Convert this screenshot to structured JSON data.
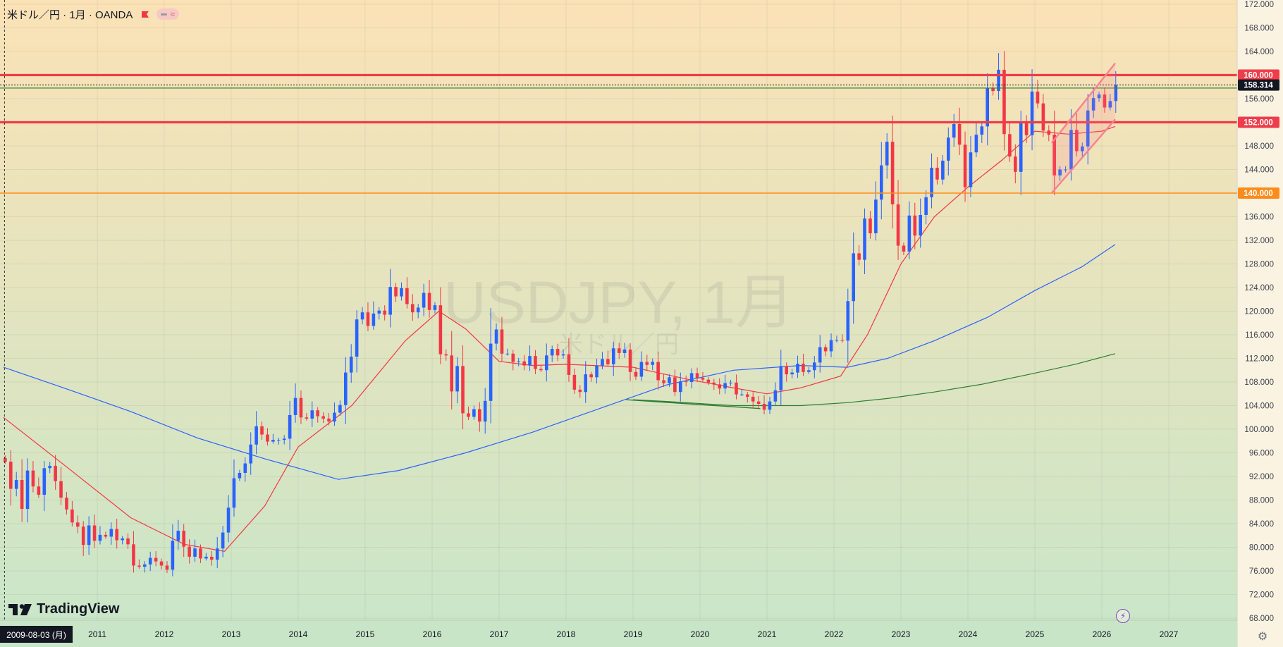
{
  "legend": {
    "symbol_title": "米ドル／円 · 1月 · OANDA",
    "pill_symbol": "≈"
  },
  "watermark": {
    "main": "USDJPY, 1月",
    "sub": "米ドル／円"
  },
  "branding": {
    "logo_text": "TradingView"
  },
  "crosshair": {
    "date_label": "2009-08-03 (月)"
  },
  "colors": {
    "bull": "#2962ff",
    "bear": "#f23645",
    "ma_short": "#f23645",
    "ma_mid": "#2962ff",
    "ma_long": "#2e7d32",
    "bg_top": "#fbe2b6",
    "bg_bottom": "#c8e6c9",
    "hline_red": "#ef3d4a",
    "hline_orange": "#ff8c1a",
    "channel": "#f7828f"
  },
  "chart_data": {
    "type": "candlestick",
    "symbol": "USDJPY",
    "interval": "1M",
    "ylim": [
      68,
      172
    ],
    "y_ticks": [
      "172.000",
      "168.000",
      "164.000",
      "160.000",
      "156.000",
      "152.000",
      "148.000",
      "144.000",
      "140.000",
      "136.000",
      "132.000",
      "128.000",
      "124.000",
      "120.000",
      "116.000",
      "112.000",
      "108.000",
      "104.000",
      "100.000",
      "96.000",
      "92.000",
      "88.000",
      "84.000",
      "80.000",
      "76.000",
      "72.000",
      "68.000"
    ],
    "x_ticks": [
      "2011",
      "2012",
      "2013",
      "2014",
      "2015",
      "2016",
      "2017",
      "2018",
      "2019",
      "2020",
      "2021",
      "2022",
      "2023",
      "2024",
      "2025",
      "2026",
      "2027"
    ],
    "x_range": [
      "2009-08",
      "2027-11"
    ],
    "last_price": 158.314,
    "price_labels": [
      {
        "value": 160.0,
        "label": "160.000",
        "kind": "red"
      },
      {
        "value": 158.314,
        "label": "158.314",
        "kind": "current"
      },
      {
        "value": 152.0,
        "label": "152.000",
        "kind": "red"
      },
      {
        "value": 140.0,
        "label": "140.000",
        "kind": "orange"
      }
    ],
    "horizontal_lines": [
      {
        "value": 160.0,
        "color": "red"
      },
      {
        "value": 152.0,
        "color": "red"
      },
      {
        "value": 140.0,
        "color": "orange"
      },
      {
        "value": 157.8,
        "color": "green"
      }
    ],
    "closes": [
      [
        "2009-08",
        94.5
      ],
      [
        "2009-09",
        89.9
      ],
      [
        "2009-10",
        91.4
      ],
      [
        "2009-11",
        86.5
      ],
      [
        "2009-12",
        93.0
      ],
      [
        "2010-01",
        90.3
      ],
      [
        "2010-02",
        88.9
      ],
      [
        "2010-03",
        93.4
      ],
      [
        "2010-04",
        93.8
      ],
      [
        "2010-05",
        91.2
      ],
      [
        "2010-06",
        88.4
      ],
      [
        "2010-07",
        86.4
      ],
      [
        "2010-08",
        84.2
      ],
      [
        "2010-09",
        83.5
      ],
      [
        "2010-10",
        80.4
      ],
      [
        "2010-11",
        83.7
      ],
      [
        "2010-12",
        81.1
      ],
      [
        "2011-01",
        82.1
      ],
      [
        "2011-02",
        81.8
      ],
      [
        "2011-03",
        83.1
      ],
      [
        "2011-04",
        81.2
      ],
      [
        "2011-05",
        81.5
      ],
      [
        "2011-06",
        80.5
      ],
      [
        "2011-07",
        76.9
      ],
      [
        "2011-08",
        76.7
      ],
      [
        "2011-09",
        77.1
      ],
      [
        "2011-10",
        78.2
      ],
      [
        "2011-11",
        77.6
      ],
      [
        "2011-12",
        76.9
      ],
      [
        "2012-01",
        76.2
      ],
      [
        "2012-02",
        81.1
      ],
      [
        "2012-03",
        82.8
      ],
      [
        "2012-04",
        80.1
      ],
      [
        "2012-05",
        78.4
      ],
      [
        "2012-06",
        79.8
      ],
      [
        "2012-07",
        78.1
      ],
      [
        "2012-08",
        78.4
      ],
      [
        "2012-09",
        77.9
      ],
      [
        "2012-10",
        79.8
      ],
      [
        "2012-11",
        82.5
      ],
      [
        "2012-12",
        86.7
      ],
      [
        "2013-01",
        91.7
      ],
      [
        "2013-02",
        92.6
      ],
      [
        "2013-03",
        94.2
      ],
      [
        "2013-04",
        97.4
      ],
      [
        "2013-05",
        100.5
      ],
      [
        "2013-06",
        99.1
      ],
      [
        "2013-07",
        97.9
      ],
      [
        "2013-08",
        98.2
      ],
      [
        "2013-09",
        98.2
      ],
      [
        "2013-10",
        98.4
      ],
      [
        "2013-11",
        102.4
      ],
      [
        "2013-12",
        105.3
      ],
      [
        "2014-01",
        102.0
      ],
      [
        "2014-02",
        101.8
      ],
      [
        "2014-03",
        103.2
      ],
      [
        "2014-04",
        102.2
      ],
      [
        "2014-05",
        101.8
      ],
      [
        "2014-06",
        101.3
      ],
      [
        "2014-07",
        102.8
      ],
      [
        "2014-08",
        104.1
      ],
      [
        "2014-09",
        109.6
      ],
      [
        "2014-10",
        112.3
      ],
      [
        "2014-11",
        118.6
      ],
      [
        "2014-12",
        119.8
      ],
      [
        "2015-01",
        117.5
      ],
      [
        "2015-02",
        119.6
      ],
      [
        "2015-03",
        120.1
      ],
      [
        "2015-04",
        119.4
      ],
      [
        "2015-05",
        124.1
      ],
      [
        "2015-06",
        122.5
      ],
      [
        "2015-07",
        123.9
      ],
      [
        "2015-08",
        121.2
      ],
      [
        "2015-09",
        119.8
      ],
      [
        "2015-10",
        120.6
      ],
      [
        "2015-11",
        123.1
      ],
      [
        "2015-12",
        120.2
      ],
      [
        "2016-01",
        121.0
      ],
      [
        "2016-02",
        112.7
      ],
      [
        "2016-03",
        112.5
      ],
      [
        "2016-04",
        106.4
      ],
      [
        "2016-05",
        110.7
      ],
      [
        "2016-06",
        102.7
      ],
      [
        "2016-07",
        102.1
      ],
      [
        "2016-08",
        103.4
      ],
      [
        "2016-09",
        101.3
      ],
      [
        "2016-10",
        104.8
      ],
      [
        "2016-11",
        114.5
      ],
      [
        "2016-12",
        116.9
      ],
      [
        "2017-01",
        112.8
      ],
      [
        "2017-02",
        112.8
      ],
      [
        "2017-03",
        111.4
      ],
      [
        "2017-04",
        111.5
      ],
      [
        "2017-05",
        110.8
      ],
      [
        "2017-06",
        112.4
      ],
      [
        "2017-07",
        110.2
      ],
      [
        "2017-08",
        110.0
      ],
      [
        "2017-09",
        112.5
      ],
      [
        "2017-10",
        113.6
      ],
      [
        "2017-11",
        112.5
      ],
      [
        "2017-12",
        112.7
      ],
      [
        "2018-01",
        109.2
      ],
      [
        "2018-02",
        106.7
      ],
      [
        "2018-03",
        106.3
      ],
      [
        "2018-04",
        109.3
      ],
      [
        "2018-05",
        108.8
      ],
      [
        "2018-06",
        110.8
      ],
      [
        "2018-07",
        111.9
      ],
      [
        "2018-08",
        111.0
      ],
      [
        "2018-09",
        113.7
      ],
      [
        "2018-10",
        112.9
      ],
      [
        "2018-11",
        113.5
      ],
      [
        "2018-12",
        109.7
      ],
      [
        "2019-01",
        108.9
      ],
      [
        "2019-02",
        111.4
      ],
      [
        "2019-03",
        110.9
      ],
      [
        "2019-04",
        111.4
      ],
      [
        "2019-05",
        108.3
      ],
      [
        "2019-06",
        107.8
      ],
      [
        "2019-07",
        108.8
      ],
      [
        "2019-08",
        106.3
      ],
      [
        "2019-09",
        108.1
      ],
      [
        "2019-10",
        108.0
      ],
      [
        "2019-11",
        109.5
      ],
      [
        "2019-12",
        108.7
      ],
      [
        "2020-01",
        108.4
      ],
      [
        "2020-02",
        107.9
      ],
      [
        "2020-03",
        107.6
      ],
      [
        "2020-04",
        106.9
      ],
      [
        "2020-05",
        107.8
      ],
      [
        "2020-06",
        107.9
      ],
      [
        "2020-07",
        105.9
      ],
      [
        "2020-08",
        105.9
      ],
      [
        "2020-09",
        105.5
      ],
      [
        "2020-10",
        104.7
      ],
      [
        "2020-11",
        104.3
      ],
      [
        "2020-12",
        103.3
      ],
      [
        "2021-01",
        104.7
      ],
      [
        "2021-02",
        106.6
      ],
      [
        "2021-03",
        110.7
      ],
      [
        "2021-04",
        109.3
      ],
      [
        "2021-05",
        109.6
      ],
      [
        "2021-06",
        111.1
      ],
      [
        "2021-07",
        109.7
      ],
      [
        "2021-08",
        110.0
      ],
      [
        "2021-09",
        111.3
      ],
      [
        "2021-10",
        113.9
      ],
      [
        "2021-11",
        113.2
      ],
      [
        "2021-12",
        115.1
      ],
      [
        "2022-01",
        115.1
      ],
      [
        "2022-02",
        115.0
      ],
      [
        "2022-03",
        121.7
      ],
      [
        "2022-04",
        129.8
      ],
      [
        "2022-05",
        128.7
      ],
      [
        "2022-06",
        135.7
      ],
      [
        "2022-07",
        133.2
      ],
      [
        "2022-08",
        138.9
      ],
      [
        "2022-09",
        144.7
      ],
      [
        "2022-10",
        148.7
      ],
      [
        "2022-11",
        138.1
      ],
      [
        "2022-12",
        131.1
      ],
      [
        "2023-01",
        130.1
      ],
      [
        "2023-02",
        136.2
      ],
      [
        "2023-03",
        132.8
      ],
      [
        "2023-04",
        136.3
      ],
      [
        "2023-05",
        139.3
      ],
      [
        "2023-06",
        144.3
      ],
      [
        "2023-07",
        142.3
      ],
      [
        "2023-08",
        145.5
      ],
      [
        "2023-09",
        149.4
      ],
      [
        "2023-10",
        151.7
      ],
      [
        "2023-11",
        148.2
      ],
      [
        "2023-12",
        141.0
      ],
      [
        "2024-01",
        146.9
      ],
      [
        "2024-02",
        149.9
      ],
      [
        "2024-03",
        151.3
      ],
      [
        "2024-04",
        157.8
      ],
      [
        "2024-05",
        157.3
      ],
      [
        "2024-06",
        160.9
      ],
      [
        "2024-07",
        150.0
      ],
      [
        "2024-08",
        146.2
      ],
      [
        "2024-09",
        143.6
      ],
      [
        "2024-10",
        152.0
      ],
      [
        "2024-11",
        149.8
      ],
      [
        "2024-12",
        157.2
      ],
      [
        "2025-01",
        155.2
      ],
      [
        "2025-02",
        150.6
      ],
      [
        "2025-03",
        149.9
      ],
      [
        "2025-04",
        143.0
      ],
      [
        "2025-05",
        144.0
      ],
      [
        "2025-06",
        144.0
      ],
      [
        "2025-07",
        150.7
      ],
      [
        "2025-08",
        147.1
      ],
      [
        "2025-09",
        147.9
      ],
      [
        "2025-10",
        154.0
      ],
      [
        "2025-11",
        156.1
      ],
      [
        "2025-12",
        156.7
      ],
      [
        "2026-01",
        154.5
      ],
      [
        "2026-02",
        155.6
      ],
      [
        "2026-03",
        158.3
      ]
    ],
    "ma_short_points": [
      [
        2009.6,
        102.0
      ],
      [
        2010.5,
        94.0
      ],
      [
        2011.5,
        85.0
      ],
      [
        2012.3,
        80.5
      ],
      [
        2012.9,
        79.3
      ],
      [
        2013.5,
        87.0
      ],
      [
        2014.0,
        97.0
      ],
      [
        2014.8,
        104.0
      ],
      [
        2015.6,
        115.0
      ],
      [
        2016.1,
        120.0
      ],
      [
        2016.5,
        117.0
      ],
      [
        2017.0,
        111.5
      ],
      [
        2017.5,
        110.8
      ],
      [
        2018.0,
        111.0
      ],
      [
        2019.0,
        110.5
      ],
      [
        2019.8,
        108.5
      ],
      [
        2020.5,
        107.0
      ],
      [
        2021.0,
        106.0
      ],
      [
        2021.5,
        107.0
      ],
      [
        2022.1,
        109.0
      ],
      [
        2022.5,
        116.0
      ],
      [
        2023.0,
        128.0
      ],
      [
        2023.5,
        136.0
      ],
      [
        2024.0,
        141.0
      ],
      [
        2024.5,
        145.5
      ],
      [
        2025.0,
        150.5
      ],
      [
        2025.5,
        150.0
      ],
      [
        2026.0,
        150.5
      ],
      [
        2026.2,
        151.3
      ]
    ],
    "ma_mid_points": [
      [
        2009.6,
        110.5
      ],
      [
        2010.5,
        107.0
      ],
      [
        2011.5,
        103.0
      ],
      [
        2012.5,
        98.5
      ],
      [
        2013.5,
        95.0
      ],
      [
        2014.6,
        91.5
      ],
      [
        2015.5,
        93.0
      ],
      [
        2016.5,
        96.0
      ],
      [
        2017.5,
        99.5
      ],
      [
        2018.5,
        103.5
      ],
      [
        2019.5,
        107.5
      ],
      [
        2020.5,
        110.0
      ],
      [
        2021.5,
        110.8
      ],
      [
        2022.2,
        110.5
      ],
      [
        2022.8,
        112.0
      ],
      [
        2023.5,
        115.0
      ],
      [
        2024.3,
        119.0
      ],
      [
        2025.0,
        123.5
      ],
      [
        2025.7,
        127.5
      ],
      [
        2026.2,
        131.3
      ]
    ],
    "ma_long_points": [
      [
        2019.0,
        105.0
      ],
      [
        2019.5,
        104.7
      ],
      [
        2020.5,
        104.0
      ],
      [
        2021.5,
        104.0
      ],
      [
        2022.2,
        104.5
      ],
      [
        2022.8,
        105.2
      ],
      [
        2023.5,
        106.3
      ],
      [
        2024.2,
        107.6
      ],
      [
        2025.0,
        109.5
      ],
      [
        2025.6,
        111.0
      ],
      [
        2026.2,
        112.8
      ]
    ],
    "channel": {
      "upper": [
        [
          2025.25,
          148.5
        ],
        [
          2026.2,
          162.0
        ]
      ],
      "lower": [
        [
          2025.25,
          140.0
        ],
        [
          2026.2,
          152.5
        ]
      ]
    },
    "support_line": [
      [
        2018.9,
        105.0
      ],
      [
        2020.9,
        103.5
      ]
    ]
  }
}
